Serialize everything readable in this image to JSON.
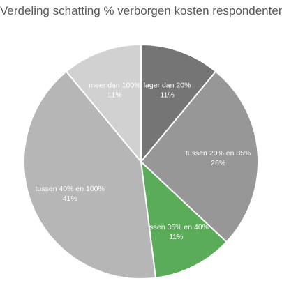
{
  "chart_data": {
    "type": "pie",
    "title": "Verdeling schatting % verborgen kosten respondenten",
    "slices": [
      {
        "label": "lager dan 20%",
        "pct_label": "11%",
        "value": 11,
        "color": "#757575"
      },
      {
        "label": "tussen 20% en 35%",
        "pct_label": "26%",
        "value": 26,
        "color": "#979797"
      },
      {
        "label": "tussen 35% en 40%",
        "pct_label": "11%",
        "value": 11,
        "color": "#5aac58"
      },
      {
        "label": "tussen 40% en 100%",
        "pct_label": "41%",
        "value": 41,
        "color": "#b6b6b6"
      },
      {
        "label": "meer dan 100%",
        "pct_label": "11%",
        "value": 11,
        "color": "#d1d1d1"
      }
    ],
    "start_angle": "top",
    "direction": "clockwise",
    "legend": "none"
  }
}
